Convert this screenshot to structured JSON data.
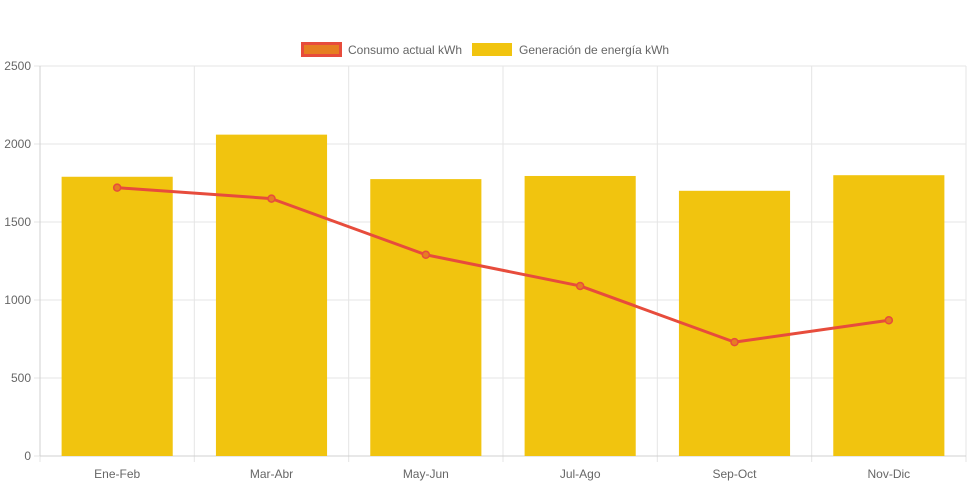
{
  "chart_data": {
    "type": "bar",
    "categories": [
      "Ene-Feb",
      "Mar-Abr",
      "May-Jun",
      "Jul-Ago",
      "Sep-Oct",
      "Nov-Dic"
    ],
    "series": [
      {
        "name": "Consumo actual kWh",
        "render": "line",
        "color": "#e74c3c",
        "legend_fill": "#e67e22",
        "values": [
          1720,
          1650,
          1290,
          1090,
          730,
          870
        ]
      },
      {
        "name": "Generación de energía kWh",
        "render": "bar",
        "color": "#f1c40f",
        "values": [
          1790,
          2060,
          1775,
          1795,
          1700,
          1800
        ]
      }
    ],
    "y_ticks": [
      "0",
      "500",
      "1000",
      "1500",
      "2000",
      "2500"
    ],
    "ylim": [
      0,
      2500
    ],
    "grid": true,
    "legend_position": "top-center",
    "title": "",
    "xlabel": "",
    "ylabel": ""
  }
}
